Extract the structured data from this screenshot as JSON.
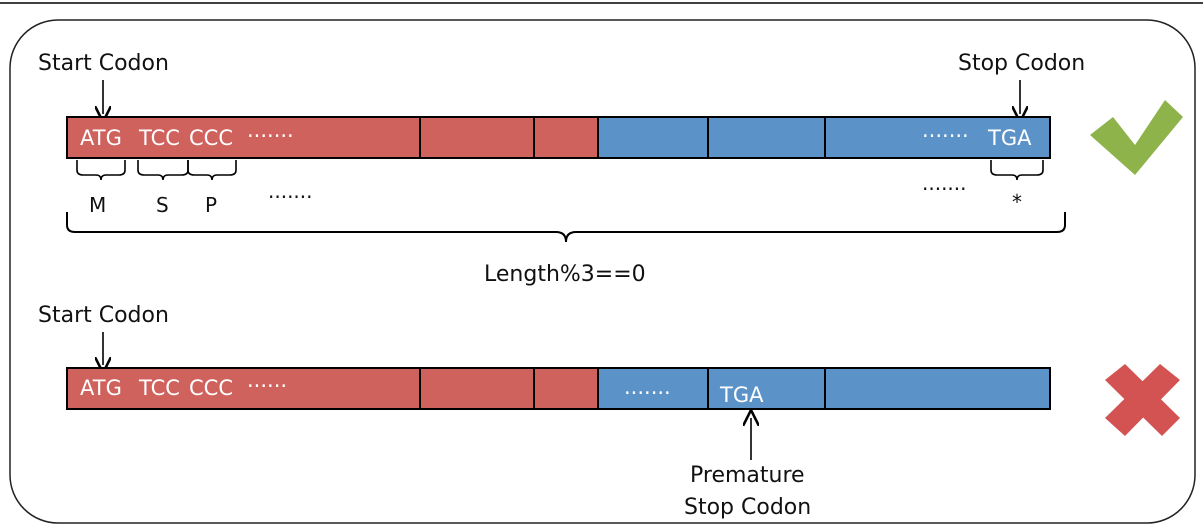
{
  "top": {
    "start_label": "Start Codon",
    "stop_label": "Stop Codon",
    "codons": [
      "ATG",
      "TCC",
      "CCC"
    ],
    "dots_left": "·······",
    "dots_right": "·······",
    "stop_codon": "TGA",
    "amino_acids": [
      "M",
      "S",
      "P"
    ],
    "aa_dots_left": "·······",
    "aa_dots_right": "·······",
    "stop_symbol": "*",
    "length_label": "Length%3==0"
  },
  "bottom": {
    "start_label": "Start Codon",
    "codons": [
      "ATG",
      "TCC",
      "CCC"
    ],
    "dots_left": "······",
    "dots_mid": "·······",
    "premature_codon": "TGA",
    "premature_label_line1": "Premature",
    "premature_label_line2": "Stop Codon"
  },
  "colors": {
    "red_segment": "#d0625e",
    "blue_segment": "#5b93c9",
    "check": "#8db34a",
    "cross": "#d35352",
    "outline": "#000000"
  },
  "icons": {
    "valid": "checkmark-icon",
    "invalid": "cross-icon"
  }
}
